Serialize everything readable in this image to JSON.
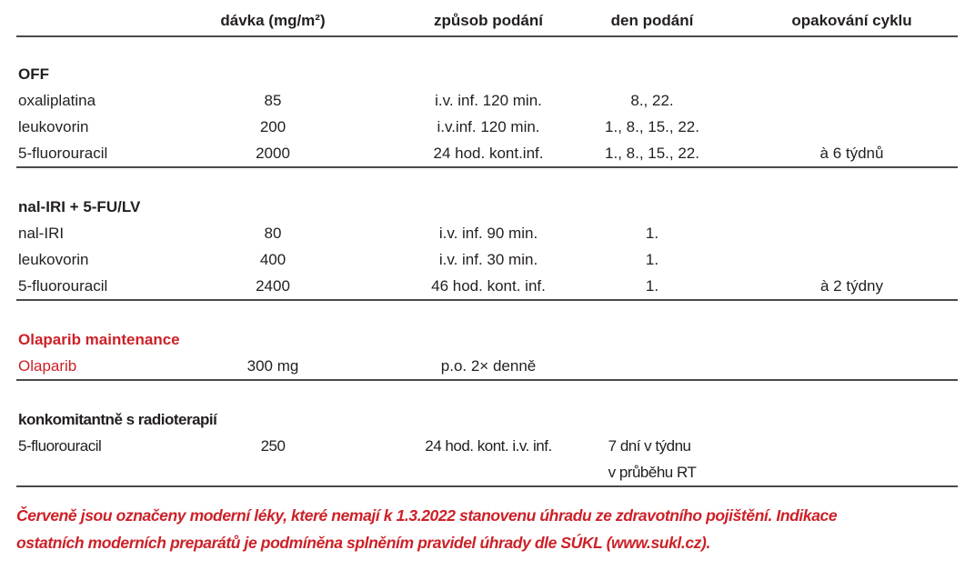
{
  "colors": {
    "accent_red": "#cc2128",
    "text_black": "#231f20",
    "rule_gray": "#4a4a4b",
    "background": "#ffffff"
  },
  "table": {
    "columns": [
      "",
      "dávka (mg/m²)",
      "způsob podání",
      "den podání",
      "opakování cyklu"
    ],
    "sections": [
      {
        "title": "OFF",
        "rows": [
          {
            "name": "oxaliplatina",
            "dose": "85",
            "route": "i.v. inf. 120 min.",
            "days": "8., 22.",
            "cycle": ""
          },
          {
            "name": "leukovorin",
            "dose": "200",
            "route": "i.v.inf. 120 min.",
            "days": "1., 8., 15., 22.",
            "cycle": ""
          },
          {
            "name": "5-fluorouracil",
            "dose": "2000",
            "route": "24 hod. kont.inf.",
            "days": "1., 8., 15., 22.",
            "cycle": "à 6 týdnů"
          }
        ]
      },
      {
        "title": "nal-IRI + 5-FU/LV",
        "rows": [
          {
            "name": "nal-IRI",
            "dose": "80",
            "route": "i.v. inf. 90 min.",
            "days": "1.",
            "cycle": ""
          },
          {
            "name": "leukovorin",
            "dose": "400",
            "route": "i.v. inf. 30 min.",
            "days": "1.",
            "cycle": ""
          },
          {
            "name": "5-fluorouracil",
            "dose": "2400",
            "route": "46 hod. kont. inf.",
            "days": "1.",
            "cycle": "à 2 týdny"
          }
        ]
      },
      {
        "title": "Olaparib maintenance",
        "rows": [
          {
            "name": "Olaparib",
            "dose": "300 mg",
            "route": "p.o. 2× denně",
            "days": "",
            "cycle": ""
          }
        ]
      },
      {
        "title": "konkomitantně s radioterapií",
        "rows": [
          {
            "name": "5-fluorouracil",
            "dose": "250",
            "route": "24 hod. kont. i.v. inf.",
            "days": "7 dní v týdnu",
            "days_line2": "v průběhu RT",
            "cycle": ""
          }
        ]
      }
    ]
  },
  "footnote": {
    "line1": "Červeně jsou označeny moderní léky, které nemají k 1.3.2022 stanovenu úhradu ze zdravotního pojištění. Indikace",
    "line2": "ostatních moderních preparátů je podmíněna splněním pravidel úhrady dle SÚKL (www.sukl.cz)."
  }
}
